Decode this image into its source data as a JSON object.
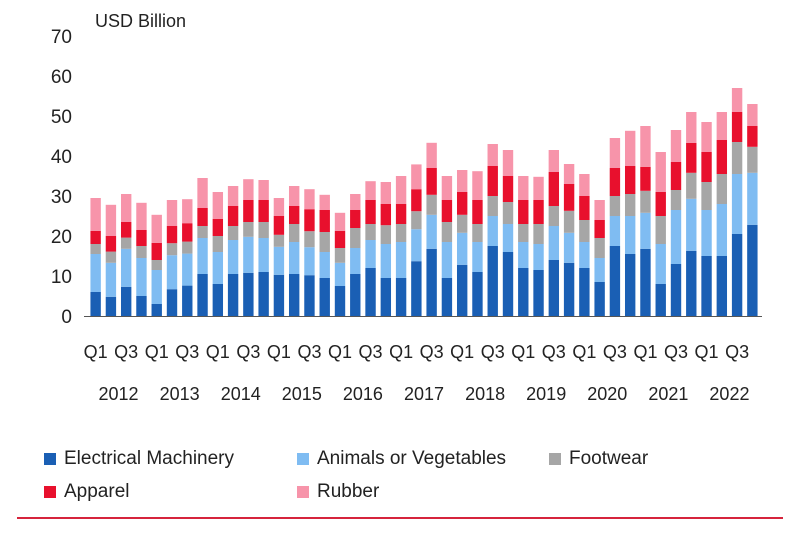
{
  "chart_data": {
    "type": "bar",
    "stacked": true,
    "ylabel": "USD Billion",
    "ylim": [
      0,
      70
    ],
    "yticks": [
      0,
      10,
      20,
      30,
      40,
      50,
      60,
      70
    ],
    "categories": [
      "2012 Q1",
      "2012 Q2",
      "2012 Q3",
      "2012 Q4",
      "2013 Q1",
      "2013 Q2",
      "2013 Q3",
      "2013 Q4",
      "2014 Q1",
      "2014 Q2",
      "2014 Q3",
      "2014 Q4",
      "2015 Q1",
      "2015 Q2",
      "2015 Q3",
      "2015 Q4",
      "2016 Q1",
      "2016 Q2",
      "2016 Q3",
      "2016 Q4",
      "2017 Q1",
      "2017 Q2",
      "2017 Q3",
      "2017 Q4",
      "2018 Q1",
      "2018 Q2",
      "2018 Q3",
      "2018 Q4",
      "2019 Q1",
      "2019 Q2",
      "2019 Q3",
      "2019 Q4",
      "2020 Q1",
      "2020 Q2",
      "2020 Q3",
      "2020 Q4",
      "2021 Q1",
      "2021 Q2",
      "2021 Q3",
      "2021 Q4",
      "2022 Q1",
      "2022 Q2",
      "2022 Q3",
      "2022 Q4"
    ],
    "quarter_tick_labels": [
      "Q1",
      "Q3",
      "Q1",
      "Q3",
      "Q1",
      "Q3",
      "Q1",
      "Q3",
      "Q1",
      "Q3",
      "Q1",
      "Q3",
      "Q1",
      "Q3",
      "Q1",
      "Q3",
      "Q1",
      "Q3",
      "Q1",
      "Q3",
      "Q1",
      "Q3"
    ],
    "year_labels": [
      "2012",
      "2013",
      "2014",
      "2015",
      "2016",
      "2017",
      "2018",
      "2019",
      "2020",
      "2021",
      "2022"
    ],
    "series": [
      {
        "name": "Electrical Machinery",
        "color": "#1a5fb4",
        "values": [
          6,
          4.8,
          7.3,
          5,
          3,
          6.7,
          7.6,
          10.5,
          8,
          10.5,
          10.8,
          11,
          10.3,
          10.5,
          10.2,
          9.5,
          7.5,
          10.5,
          12,
          9.5,
          9.5,
          13.7,
          16.8,
          9.5,
          12.8,
          11,
          17.5,
          16,
          12,
          11.5,
          14,
          13.3,
          12,
          8.5,
          17.5,
          15.5,
          16.8,
          8,
          13,
          16.3,
          15,
          15,
          20.5,
          22.8
        ]
      },
      {
        "name": "Animals or Vegetables",
        "color": "#7fbcf2",
        "values": [
          9.5,
          8.5,
          9.5,
          9.5,
          8.5,
          8.5,
          8,
          9,
          8,
          8.5,
          9,
          8.5,
          7,
          8,
          7,
          6.5,
          5.8,
          6.5,
          7,
          8.5,
          9,
          8,
          8.5,
          9,
          8,
          7.5,
          7.5,
          7,
          6.5,
          6.5,
          8.5,
          7.5,
          6.5,
          6,
          7.5,
          9.5,
          9,
          10,
          13.5,
          13,
          11.5,
          13,
          15,
          13
        ]
      },
      {
        "name": "Footwear",
        "color": "#a6a6a6",
        "values": [
          2.5,
          2.8,
          2.8,
          3,
          2.5,
          3,
          3,
          3,
          4,
          3.5,
          3.7,
          4,
          3,
          4.5,
          4,
          5,
          3.7,
          5,
          4,
          4.7,
          4.5,
          4.5,
          5,
          5,
          4.5,
          4.5,
          5,
          5.5,
          4.5,
          5,
          5,
          5.5,
          5.5,
          5,
          5,
          5.5,
          5.5,
          7,
          5,
          6.5,
          7,
          7.5,
          8,
          6.5
        ]
      },
      {
        "name": "Apparel",
        "color": "#e8102d",
        "values": [
          3.3,
          3.9,
          3.9,
          4,
          4.3,
          4.3,
          4.6,
          4.5,
          4.3,
          5,
          5.5,
          5.5,
          4.7,
          4.5,
          5.5,
          5.5,
          4.3,
          4.5,
          6,
          5.3,
          5,
          5.5,
          6.7,
          5.5,
          5.7,
          6,
          7.5,
          6.5,
          6,
          6,
          8.5,
          6.7,
          6,
          4.5,
          7,
          7,
          6,
          6,
          7,
          7.5,
          7.5,
          8.5,
          7.5,
          5.2
        ]
      },
      {
        "name": "Rubber",
        "color": "#f794aa",
        "values": [
          8.2,
          7.8,
          7,
          6.8,
          7,
          6.5,
          6,
          7.5,
          6.7,
          5,
          5.2,
          5,
          4.5,
          5,
          5,
          3.8,
          4.5,
          4,
          4.7,
          5.5,
          7,
          6.2,
          6.3,
          6,
          5.5,
          7.2,
          5.5,
          6.5,
          6,
          5.8,
          5.5,
          5,
          5.5,
          5,
          7.5,
          8.8,
          10.2,
          10,
          8,
          7.7,
          7.5,
          7,
          6,
          5.5
        ]
      }
    ]
  },
  "legend": {
    "items": [
      "Electrical Machinery",
      "Animals or Vegetables",
      "Footwear",
      "Apparel",
      "Rubber"
    ]
  },
  "colors": {
    "accent_rule": "#d6243c"
  }
}
